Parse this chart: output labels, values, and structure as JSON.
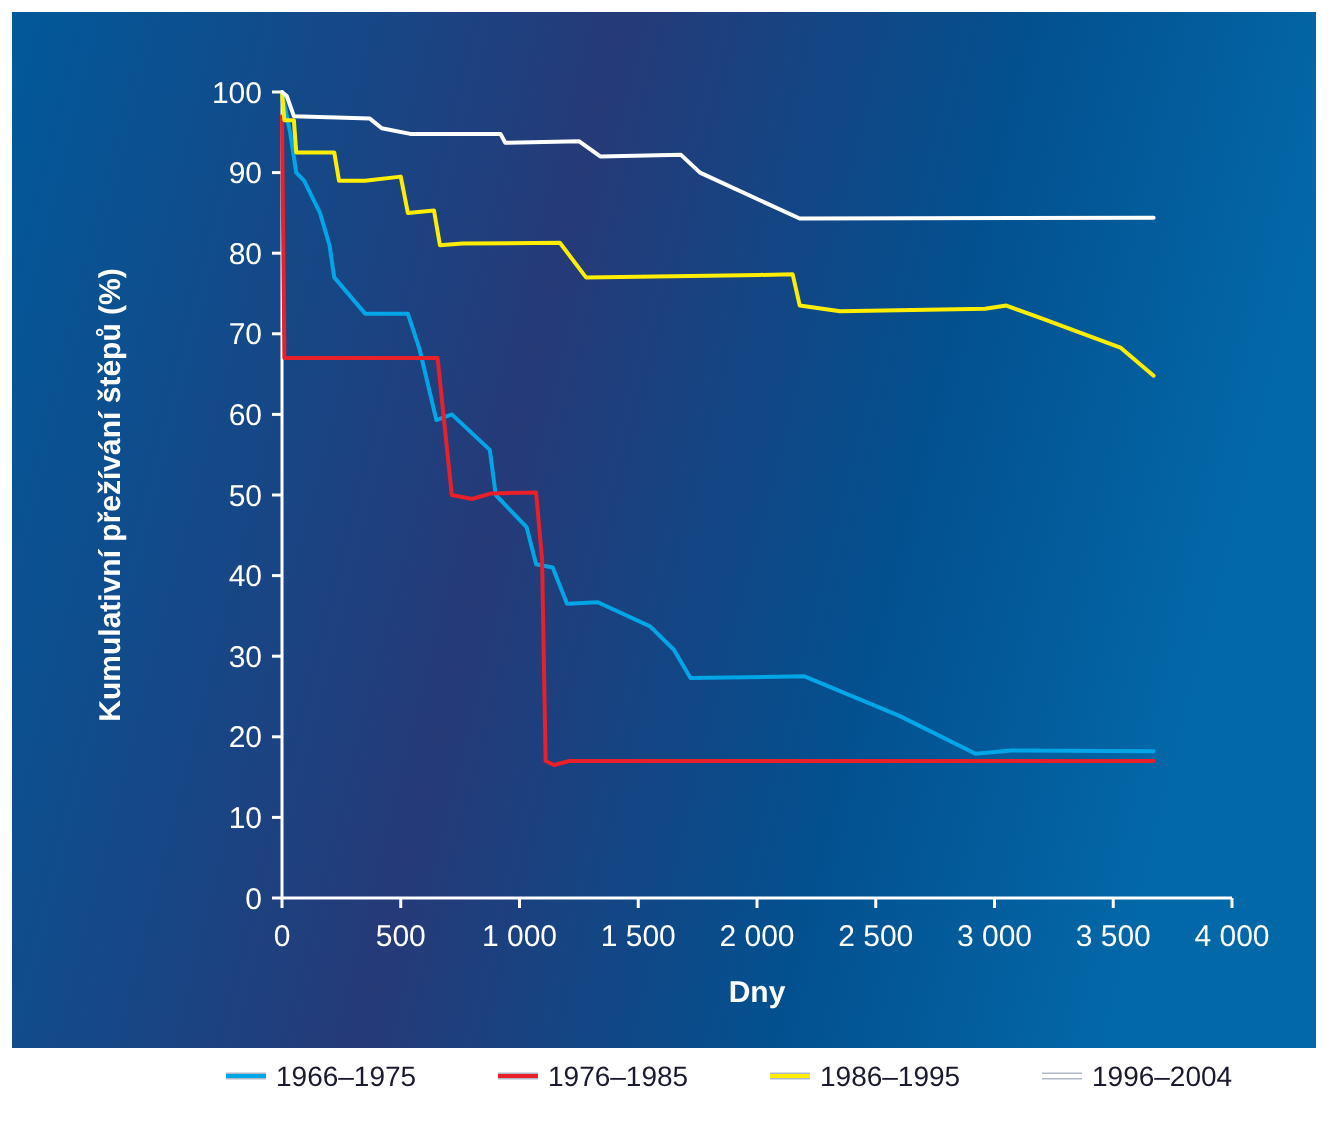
{
  "chart_data": {
    "type": "line",
    "xlabel": "Dny",
    "ylabel": "Kumulativní přežívání štěpů (%)",
    "xlim": [
      0,
      4000
    ],
    "ylim": [
      0,
      100
    ],
    "xticks": [
      0,
      {
        "value": 500,
        "label": "500"
      },
      {
        "value": 1000,
        "label": "1 000"
      },
      {
        "value": 1500,
        "label": "1 500"
      },
      {
        "value": 2000,
        "label": "2 000"
      },
      {
        "value": 2500,
        "label": "2 500"
      },
      {
        "value": 3000,
        "label": "3 000"
      },
      {
        "value": 3500,
        "label": "3 500"
      },
      {
        "value": 4000,
        "label": "4 000"
      }
    ],
    "yticks": [
      0,
      10,
      20,
      30,
      40,
      50,
      60,
      70,
      80,
      90,
      100
    ],
    "grid": false,
    "legend": "bottom",
    "marker": "none",
    "line_style": "solid",
    "series": [
      {
        "name": "1966–1975",
        "color": "#00a6e6",
        "x": [
          0,
          34,
          60,
          93,
          160,
          200,
          220,
          350,
          530,
          580,
          650,
          715,
          875,
          900,
          1030,
          1070,
          1140,
          1200,
          1330,
          1550,
          1650,
          1720,
          2200,
          2600,
          2920,
          3070,
          3670
        ],
        "values": [
          100,
          95,
          90,
          89,
          85,
          81,
          77,
          72.5,
          72.5,
          68,
          59.3,
          60,
          55.6,
          50,
          46,
          41.4,
          41,
          36.5,
          36.7,
          33.7,
          30.8,
          27.3,
          27.5,
          22.6,
          17.9,
          18.3,
          18.2
        ]
      },
      {
        "name": "1976–1985",
        "color": "#e8202a",
        "x": [
          0,
          10,
          655,
          715,
          800,
          880,
          1070,
          1095,
          1110,
          1145,
          1210,
          3670
        ],
        "values": [
          97,
          67,
          67,
          50,
          49.5,
          50.2,
          50.3,
          42,
          17,
          16.5,
          17,
          17
        ]
      },
      {
        "name": "1986–1995",
        "color": "#ffee00",
        "x": [
          0,
          10,
          50,
          60,
          220,
          240,
          350,
          500,
          530,
          640,
          665,
          760,
          1170,
          1280,
          2010,
          2150,
          2180,
          2350,
          2960,
          3050,
          3190,
          3530,
          3670
        ],
        "values": [
          100,
          96.5,
          96.5,
          92.5,
          92.5,
          89,
          89,
          89.5,
          85,
          85.3,
          81,
          81.2,
          81.3,
          77,
          77.3,
          77.4,
          73.5,
          72.8,
          73.1,
          73.5,
          72,
          68.3,
          64.8
        ]
      },
      {
        "name": "1996–2004",
        "color": "#ffffff",
        "x": [
          0,
          20,
          50,
          370,
          420,
          540,
          920,
          940,
          1250,
          1340,
          1680,
          1760,
          2010,
          2180,
          3670
        ],
        "values": [
          100,
          99.5,
          97,
          96.7,
          95.5,
          94.8,
          94.8,
          93.7,
          93.9,
          92,
          92.2,
          90,
          86.6,
          84.3,
          84.4
        ]
      }
    ]
  }
}
